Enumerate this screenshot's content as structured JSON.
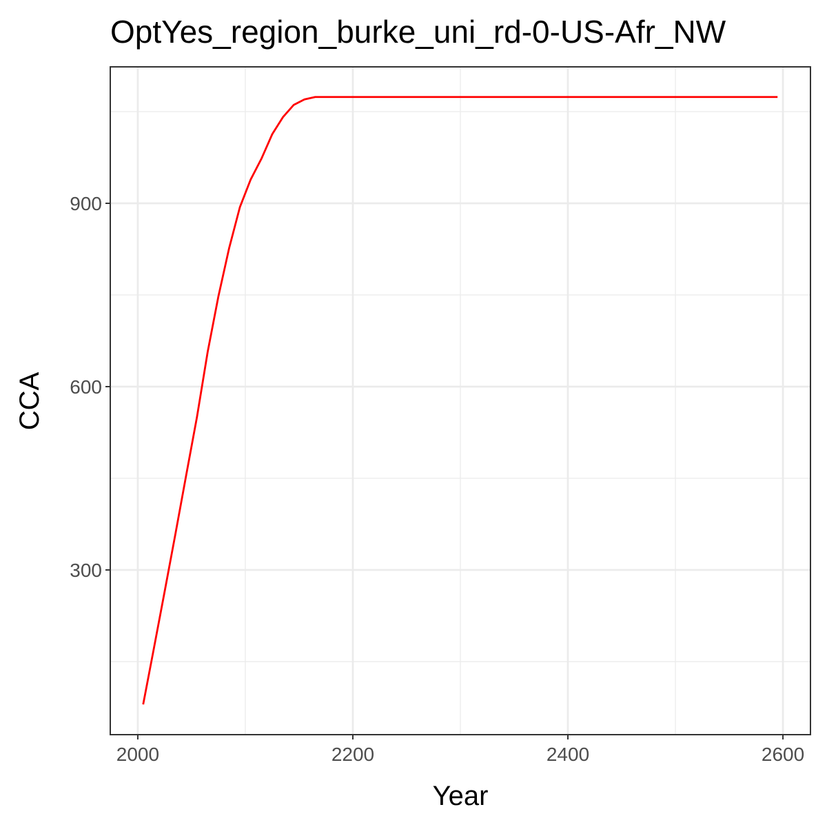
{
  "chart_data": {
    "type": "line",
    "title": "OptYes_region_burke_uni_rd-0-US-Afr_NW",
    "x_label": "Year",
    "y_label": "CCA",
    "x": [
      2005,
      2015,
      2025,
      2035,
      2045,
      2055,
      2065,
      2075,
      2085,
      2095,
      2105,
      2115,
      2125,
      2135,
      2145,
      2155,
      2165,
      2595
    ],
    "series": [
      {
        "color": "#ff0000",
        "values": [
          80,
          172,
          265,
          359,
          455,
          550,
          657,
          748,
          827,
          894,
          939,
          973,
          1013,
          1041,
          1061,
          1070,
          1074,
          1074
        ]
      }
    ],
    "xlim": [
      1974.4,
      2625.6
    ],
    "xticks": [
      2000,
      2200,
      2400,
      2600
    ],
    "xminor": [
      2100,
      2300,
      2500
    ],
    "ylim": [
      30.5,
      1123.3
    ],
    "yticks": [
      300,
      600,
      900
    ],
    "yminor": [
      150,
      450,
      750,
      1050
    ],
    "grid": true
  }
}
